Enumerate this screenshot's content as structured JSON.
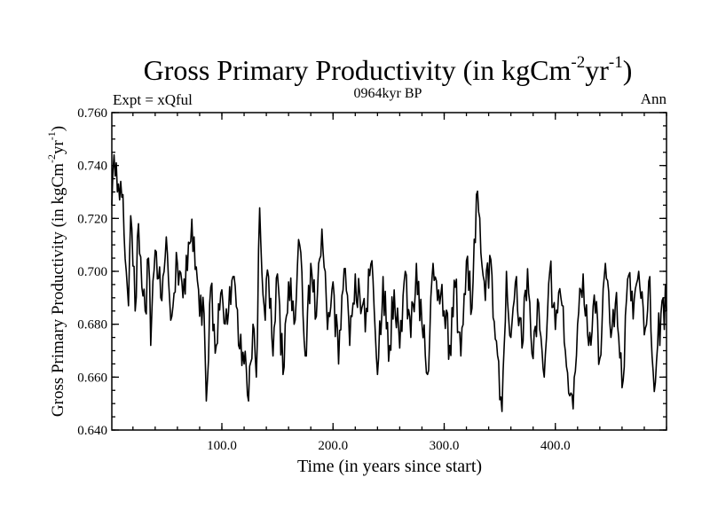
{
  "chart_data": {
    "type": "line",
    "title_main": "Gross Primary Productivity (in kgCm",
    "title_sup1": "-2",
    "title_mid": "yr",
    "title_sup2": "-1",
    "title_end": ")",
    "left_label": "Expt = xQful",
    "center_label": "0964kyr BP",
    "right_label": "Ann",
    "xlabel": "Time (in years since start)",
    "ylabel_main": "Gross Primary Productivity (in kgCm",
    "ylabel_sup1": "-2",
    "ylabel_mid": "yr",
    "ylabel_sup2": "-1",
    "ylabel_end": ")",
    "xlim": [
      1,
      500
    ],
    "ylim": [
      0.64,
      0.76
    ],
    "xticks": [
      100,
      200,
      300,
      400
    ],
    "xtick_labels": [
      "100.0",
      "200.0",
      "300.0",
      "400.0"
    ],
    "yticks": [
      0.64,
      0.66,
      0.68,
      0.7,
      0.72,
      0.74,
      0.76
    ],
    "ytick_labels": [
      "0.640",
      "0.660",
      "0.680",
      "0.700",
      "0.720",
      "0.740",
      "0.760"
    ],
    "anchors": [
      [
        1,
        0.725
      ],
      [
        2,
        0.738
      ],
      [
        3,
        0.744
      ],
      [
        4,
        0.736
      ],
      [
        5,
        0.741
      ],
      [
        6,
        0.73
      ],
      [
        7,
        0.733
      ],
      [
        8,
        0.727
      ],
      [
        9,
        0.734
      ],
      [
        10,
        0.728
      ],
      [
        11,
        0.729
      ],
      [
        12,
        0.714
      ],
      [
        14,
        0.7
      ],
      [
        16,
        0.687
      ],
      [
        18,
        0.721
      ],
      [
        20,
        0.702
      ],
      [
        22,
        0.685
      ],
      [
        25,
        0.718
      ],
      [
        28,
        0.694
      ],
      [
        31,
        0.685
      ],
      [
        34,
        0.705
      ],
      [
        36,
        0.672
      ],
      [
        40,
        0.708
      ],
      [
        45,
        0.69
      ],
      [
        50,
        0.713
      ],
      [
        55,
        0.683
      ],
      [
        60,
        0.703
      ],
      [
        65,
        0.69
      ],
      [
        70,
        0.711
      ],
      [
        75,
        0.713
      ],
      [
        80,
        0.683
      ],
      [
        84,
        0.684
      ],
      [
        86,
        0.651
      ],
      [
        90,
        0.694
      ],
      [
        95,
        0.672
      ],
      [
        100,
        0.693
      ],
      [
        105,
        0.68
      ],
      [
        110,
        0.698
      ],
      [
        115,
        0.672
      ],
      [
        120,
        0.665
      ],
      [
        124,
        0.651
      ],
      [
        128,
        0.68
      ],
      [
        131,
        0.66
      ],
      [
        134,
        0.724
      ],
      [
        138,
        0.687
      ],
      [
        142,
        0.698
      ],
      [
        146,
        0.668
      ],
      [
        150,
        0.699
      ],
      [
        155,
        0.661
      ],
      [
        160,
        0.696
      ],
      [
        165,
        0.68
      ],
      [
        170,
        0.71
      ],
      [
        175,
        0.668
      ],
      [
        180,
        0.703
      ],
      [
        185,
        0.683
      ],
      [
        190,
        0.716
      ],
      [
        195,
        0.678
      ],
      [
        200,
        0.696
      ],
      [
        205,
        0.665
      ],
      [
        210,
        0.701
      ],
      [
        215,
        0.672
      ],
      [
        220,
        0.699
      ],
      [
        225,
        0.684
      ],
      [
        230,
        0.686
      ],
      [
        235,
        0.704
      ],
      [
        240,
        0.661
      ],
      [
        245,
        0.698
      ],
      [
        250,
        0.666
      ],
      [
        255,
        0.693
      ],
      [
        260,
        0.671
      ],
      [
        265,
        0.7
      ],
      [
        270,
        0.675
      ],
      [
        275,
        0.703
      ],
      [
        280,
        0.68
      ],
      [
        285,
        0.661
      ],
      [
        290,
        0.703
      ],
      [
        295,
        0.693
      ],
      [
        300,
        0.685
      ],
      [
        305,
        0.672
      ],
      [
        310,
        0.694
      ],
      [
        315,
        0.668
      ],
      [
        320,
        0.704
      ],
      [
        325,
        0.686
      ],
      [
        329,
        0.729
      ],
      [
        333,
        0.707
      ],
      [
        337,
        0.689
      ],
      [
        341,
        0.706
      ],
      [
        345,
        0.681
      ],
      [
        349,
        0.666
      ],
      [
        352,
        0.647
      ],
      [
        356,
        0.7
      ],
      [
        360,
        0.675
      ],
      [
        365,
        0.698
      ],
      [
        370,
        0.671
      ],
      [
        375,
        0.701
      ],
      [
        380,
        0.667
      ],
      [
        385,
        0.688
      ],
      [
        390,
        0.66
      ],
      [
        395,
        0.7
      ],
      [
        400,
        0.678
      ],
      [
        405,
        0.69
      ],
      [
        410,
        0.664
      ],
      [
        414,
        0.654
      ],
      [
        416,
        0.648
      ],
      [
        420,
        0.68
      ],
      [
        425,
        0.699
      ],
      [
        430,
        0.672
      ],
      [
        435,
        0.691
      ],
      [
        440,
        0.667
      ],
      [
        445,
        0.703
      ],
      [
        450,
        0.675
      ],
      [
        455,
        0.692
      ],
      [
        460,
        0.656
      ],
      [
        465,
        0.697
      ],
      [
        470,
        0.682
      ],
      [
        475,
        0.7
      ],
      [
        480,
        0.676
      ],
      [
        485,
        0.698
      ],
      [
        488,
        0.662
      ],
      [
        490,
        0.658
      ],
      [
        492,
        0.672
      ],
      [
        495,
        0.684
      ],
      [
        497,
        0.69
      ],
      [
        498,
        0.678
      ],
      [
        499,
        0.695
      ],
      [
        500,
        0.685
      ]
    ],
    "noise_amplitude": 0.0085,
    "noise_seed": 964
  }
}
